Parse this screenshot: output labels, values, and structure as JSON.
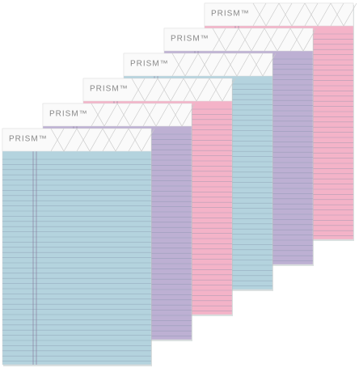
{
  "pads": [
    {
      "label": "PRISM™",
      "color": "#f4b3c8"
    },
    {
      "label": "PRISM™",
      "color": "#bdb0d3"
    },
    {
      "label": "PRISM™",
      "color": "#b4d3de"
    },
    {
      "label": "PRISM™",
      "color": "#f4b3c8"
    },
    {
      "label": "PRISM™",
      "color": "#bdb0d3"
    },
    {
      "label": "PRISM™",
      "color": "#b4d3de"
    }
  ]
}
